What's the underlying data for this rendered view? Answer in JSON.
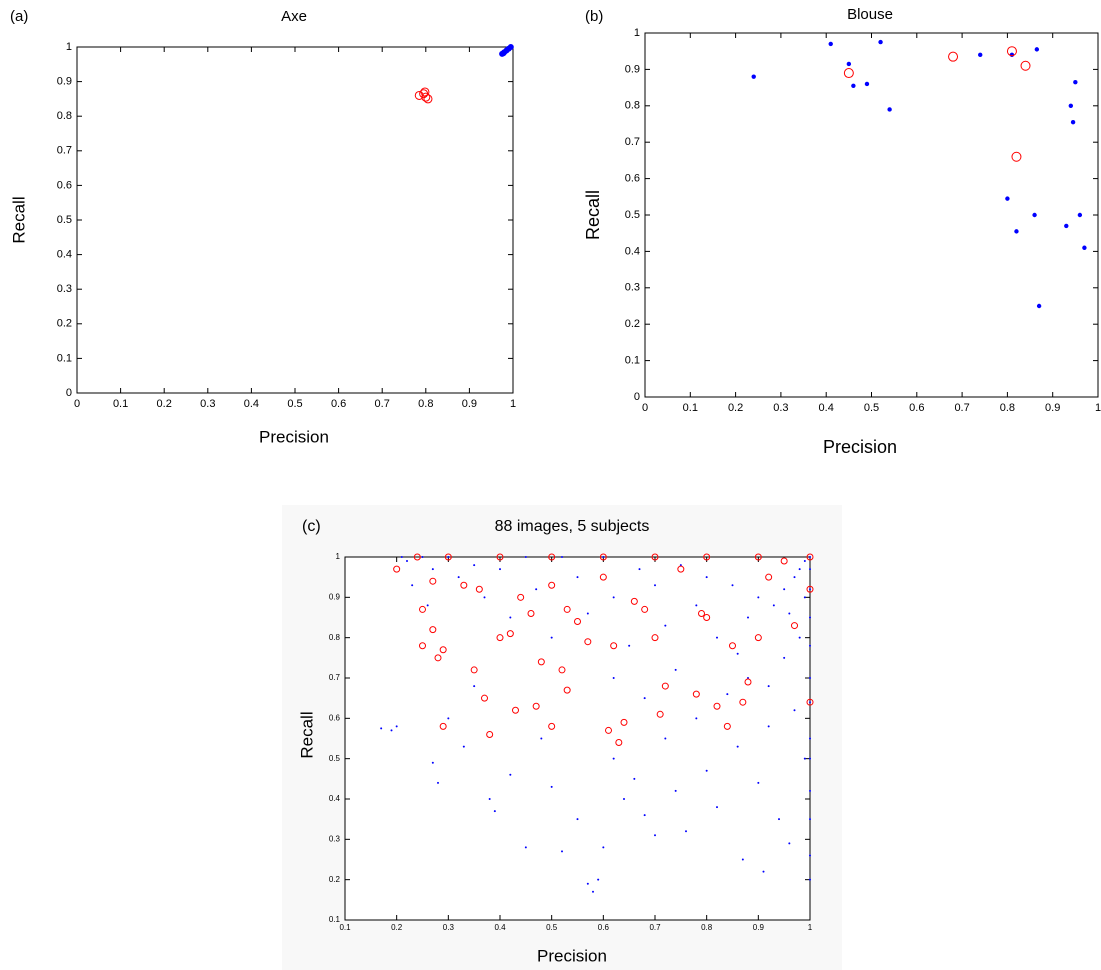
{
  "chart_data": [
    {
      "type": "scatter",
      "panel_label": "(a)",
      "title": "Axe",
      "xlabel": "Precision",
      "ylabel": "Recall",
      "xlim": [
        0,
        1
      ],
      "ylim": [
        0,
        1
      ],
      "xticks": [
        0,
        0.1,
        0.2,
        0.3,
        0.4,
        0.5,
        0.6,
        0.7,
        0.8,
        0.9,
        1
      ],
      "yticks": [
        0,
        0.1,
        0.2,
        0.3,
        0.4,
        0.5,
        0.6,
        0.7,
        0.8,
        0.9,
        1
      ],
      "series": [
        {
          "color": "#0000ff",
          "marker": "dot",
          "x": [
            0.975,
            0.978,
            0.98,
            0.985,
            0.99,
            0.995
          ],
          "values": [
            0.98,
            0.982,
            0.985,
            0.99,
            0.995,
            1.0
          ]
        },
        {
          "color": "#ff0000",
          "marker": "circle",
          "x": [
            0.785,
            0.795,
            0.798,
            0.8,
            0.805
          ],
          "values": [
            0.86,
            0.865,
            0.87,
            0.855,
            0.85
          ]
        }
      ]
    },
    {
      "type": "scatter",
      "panel_label": "(b)",
      "title": "Blouse",
      "xlabel": "Precision",
      "ylabel": "Recall",
      "xlim": [
        0,
        1
      ],
      "ylim": [
        0,
        1
      ],
      "xticks": [
        0,
        0.1,
        0.2,
        0.3,
        0.4,
        0.5,
        0.6,
        0.7,
        0.8,
        0.9,
        1
      ],
      "yticks": [
        0,
        0.1,
        0.2,
        0.3,
        0.4,
        0.5,
        0.6,
        0.7,
        0.8,
        0.9,
        1
      ],
      "series": [
        {
          "color": "#0000ff",
          "marker": "dot",
          "x": [
            0.24,
            0.41,
            0.45,
            0.46,
            0.49,
            0.52,
            0.54,
            0.74,
            0.8,
            0.81,
            0.82,
            0.86,
            0.865,
            0.87,
            0.93,
            0.94,
            0.945,
            0.95,
            0.96,
            0.97
          ],
          "values": [
            0.88,
            0.97,
            0.915,
            0.855,
            0.86,
            0.975,
            0.79,
            0.94,
            0.545,
            0.94,
            0.455,
            0.5,
            0.955,
            0.25,
            0.47,
            0.8,
            0.755,
            0.865,
            0.5,
            0.41
          ]
        },
        {
          "color": "#ff0000",
          "marker": "circle",
          "x": [
            0.45,
            0.68,
            0.81,
            0.82,
            0.84
          ],
          "values": [
            0.89,
            0.935,
            0.95,
            0.66,
            0.91
          ]
        }
      ]
    },
    {
      "type": "scatter",
      "panel_label": "(c)",
      "title": "88 images, 5 subjects",
      "xlabel": "Precision",
      "ylabel": "Recall",
      "xlim": [
        0.1,
        1
      ],
      "ylim": [
        0.1,
        1
      ],
      "xticks": [
        0.1,
        0.2,
        0.3,
        0.4,
        0.5,
        0.6,
        0.7,
        0.8,
        0.9,
        1
      ],
      "yticks": [
        0.1,
        0.2,
        0.3,
        0.4,
        0.5,
        0.6,
        0.7,
        0.8,
        0.9,
        1
      ],
      "series": [
        {
          "color": "#0000ff",
          "marker": "dot",
          "x": [
            0.17,
            0.19,
            0.2,
            0.27,
            0.28,
            0.3,
            0.33,
            0.35,
            0.38,
            0.39,
            0.42,
            0.45,
            0.48,
            0.5,
            0.52,
            0.55,
            0.57,
            0.58,
            0.59,
            0.6,
            0.62,
            0.64,
            0.66,
            0.68,
            0.7,
            0.72,
            0.74,
            0.76,
            0.78,
            0.8,
            0.82,
            0.84,
            0.86,
            0.87,
            0.88,
            0.9,
            0.91,
            0.92,
            0.94,
            0.95,
            0.96,
            0.97,
            0.98,
            0.99,
            1,
            1,
            1,
            1,
            1,
            1,
            1,
            1,
            1,
            1,
            1,
            1,
            1,
            0.99,
            0.98,
            0.97,
            0.95,
            0.93,
            0.9,
            0.88,
            0.85,
            0.82,
            0.8,
            0.78,
            0.75,
            0.72,
            0.7,
            0.67,
            0.65,
            0.62,
            0.6,
            0.57,
            0.55,
            0.52,
            0.5,
            0.47,
            0.45,
            0.42,
            0.4,
            0.37,
            0.35,
            0.32,
            0.3,
            0.27,
            0.25,
            0.22,
            0.21,
            0.23,
            0.26,
            0.62,
            0.68,
            0.74,
            0.86,
            0.92,
            0.96,
            0.99
          ],
          "values": [
            0.575,
            0.57,
            0.58,
            0.49,
            0.44,
            0.6,
            0.53,
            0.68,
            0.4,
            0.37,
            0.46,
            0.28,
            0.55,
            0.43,
            0.27,
            0.35,
            0.19,
            0.17,
            0.2,
            0.28,
            0.5,
            0.4,
            0.45,
            0.36,
            0.31,
            0.55,
            0.42,
            0.32,
            0.6,
            0.47,
            0.38,
            0.66,
            0.53,
            0.25,
            0.7,
            0.44,
            0.22,
            0.58,
            0.35,
            0.75,
            0.29,
            0.62,
            0.8,
            0.5,
            0.2,
            0.26,
            0.35,
            0.42,
            0.5,
            0.55,
            0.64,
            0.7,
            0.78,
            0.85,
            0.92,
            0.97,
            1,
            0.99,
            0.97,
            0.95,
            0.92,
            0.88,
            0.9,
            0.85,
            0.93,
            0.8,
            0.95,
            0.88,
            0.98,
            0.83,
            0.93,
            0.97,
            0.78,
            0.9,
            1,
            0.86,
            0.95,
            1,
            0.8,
            0.92,
            1,
            0.85,
            0.97,
            0.9,
            0.98,
            0.95,
            1,
            0.97,
            1,
            0.99,
            1,
            0.93,
            0.88,
            0.7,
            0.65,
            0.72,
            0.76,
            0.68,
            0.86,
            0.9
          ]
        },
        {
          "color": "#ff0000",
          "marker": "circle",
          "x": [
            0.2,
            0.25,
            0.25,
            0.27,
            0.27,
            0.28,
            0.29,
            0.29,
            0.33,
            0.35,
            0.36,
            0.37,
            0.38,
            0.4,
            0.42,
            0.43,
            0.44,
            0.46,
            0.47,
            0.48,
            0.5,
            0.5,
            0.52,
            0.53,
            0.53,
            0.55,
            0.57,
            0.6,
            0.61,
            0.62,
            0.63,
            0.64,
            0.66,
            0.68,
            0.7,
            0.71,
            0.72,
            0.75,
            0.78,
            0.79,
            0.8,
            0.82,
            0.84,
            0.85,
            0.87,
            0.88,
            0.9,
            0.92,
            0.95,
            0.97,
            1,
            1,
            0.24,
            0.3,
            0.4,
            0.5,
            0.6,
            0.7,
            0.8,
            0.9,
            1
          ],
          "values": [
            0.97,
            0.78,
            0.87,
            0.82,
            0.94,
            0.75,
            0.77,
            0.58,
            0.93,
            0.72,
            0.92,
            0.65,
            0.56,
            0.8,
            0.81,
            0.62,
            0.9,
            0.86,
            0.63,
            0.74,
            0.58,
            0.93,
            0.72,
            0.67,
            0.87,
            0.84,
            0.79,
            0.95,
            0.57,
            0.78,
            0.54,
            0.59,
            0.89,
            0.87,
            0.8,
            0.61,
            0.68,
            0.97,
            0.66,
            0.86,
            0.85,
            0.63,
            0.58,
            0.78,
            0.64,
            0.69,
            0.8,
            0.95,
            0.99,
            0.83,
            0.64,
            0.92,
            1,
            1,
            1,
            1,
            1,
            1,
            1,
            1,
            1
          ]
        }
      ]
    }
  ]
}
